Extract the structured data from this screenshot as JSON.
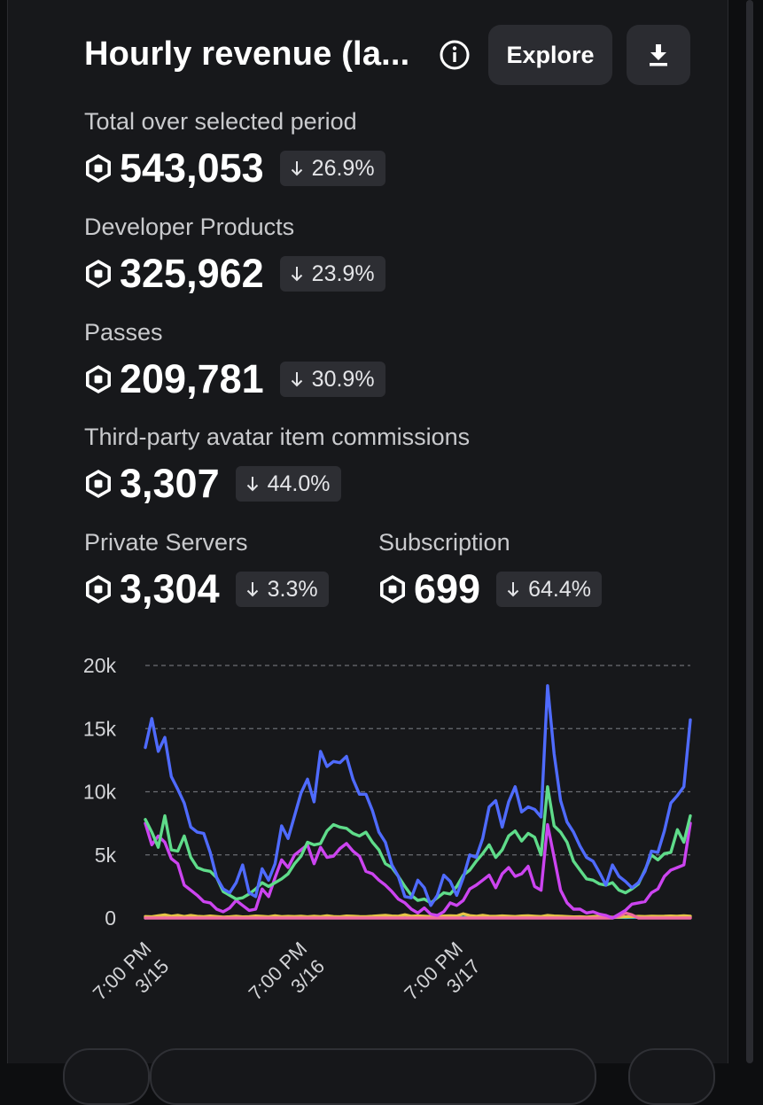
{
  "card": {
    "title": "Hourly revenue (la...",
    "explore_label": "Explore"
  },
  "icons": {
    "info": "info-icon",
    "download": "download-icon",
    "currency": "robux-icon",
    "delta": "arrow-down-icon"
  },
  "metrics": [
    {
      "label": "Total over selected period",
      "value": "543,053",
      "delta": "26.9%",
      "direction": "down"
    },
    {
      "label": "Developer Products",
      "value": "325,962",
      "delta": "23.9%",
      "direction": "down"
    },
    {
      "label": "Passes",
      "value": "209,781",
      "delta": "30.9%",
      "direction": "down"
    },
    {
      "label": "Third-party avatar item commissions",
      "value": "3,307",
      "delta": "44.0%",
      "direction": "down"
    },
    {
      "label": "Private Servers",
      "value": "3,304",
      "delta": "3.3%",
      "direction": "down"
    },
    {
      "label": "Subscription",
      "value": "699",
      "delta": "64.4%",
      "direction": "down"
    }
  ],
  "colors": {
    "background": "#17181b",
    "chip": "#2d2e33",
    "total": "#4f6bff",
    "developer_products": "#5fdc8a",
    "passes": "#cc44f0",
    "third_party": "#2bb3c5",
    "private_servers": "#e5c547",
    "subscription": "#f06aa0"
  },
  "chart_data": {
    "type": "line",
    "title": "",
    "xlabel": "",
    "ylabel": "",
    "ylim": [
      0,
      20000
    ],
    "y_ticks": [
      "20k",
      "15k",
      "10k",
      "5k",
      "0"
    ],
    "y_tick_values": [
      20000,
      15000,
      10000,
      5000,
      0
    ],
    "x_range": [
      0,
      84
    ],
    "x_ticks": [
      {
        "label": [
          "7:00 PM",
          "3/15"
        ],
        "x": 0
      },
      {
        "label": [
          "7:00 PM",
          "3/16"
        ],
        "x": 24
      },
      {
        "label": [
          "7:00 PM",
          "3/17"
        ],
        "x": 48
      }
    ],
    "grid": true,
    "legend": "none",
    "x": [
      0,
      1,
      2,
      3,
      4,
      5,
      6,
      7,
      8,
      9,
      10,
      11,
      12,
      13,
      14,
      15,
      16,
      17,
      18,
      19,
      20,
      21,
      22,
      23,
      24,
      25,
      26,
      27,
      28,
      29,
      30,
      31,
      32,
      33,
      34,
      35,
      36,
      37,
      38,
      39,
      40,
      41,
      42,
      43,
      44,
      45,
      46,
      47,
      48,
      49,
      50,
      51,
      52,
      53,
      54,
      55,
      56,
      57,
      58,
      59,
      60,
      61,
      62,
      63,
      64,
      65,
      66,
      67,
      68,
      69,
      70,
      71,
      72,
      73,
      74,
      75,
      76,
      77,
      78,
      79,
      80,
      81,
      82,
      83,
      84
    ],
    "series": [
      {
        "color_key": "total",
        "values": [
          13500,
          15800,
          13200,
          14300,
          11200,
          10200,
          9100,
          7200,
          6800,
          6700,
          5200,
          3200,
          2300,
          2000,
          2800,
          4200,
          2000,
          1700,
          3900,
          3000,
          4300,
          7300,
          6300,
          8100,
          9900,
          11000,
          9200,
          13200,
          12000,
          12400,
          12300,
          12800,
          11000,
          9800,
          9800,
          8500,
          6800,
          6000,
          4200,
          3300,
          1700,
          1600,
          3000,
          2400,
          1000,
          1800,
          3400,
          2900,
          1800,
          3200,
          5000,
          4800,
          6300,
          8800,
          9300,
          7200,
          9200,
          10400,
          8400,
          8800,
          8600,
          8000,
          18400,
          13000,
          9300,
          7600,
          6800,
          5700,
          4800,
          4500,
          3600,
          2600,
          4200,
          3300,
          2900,
          2400,
          2800,
          3700,
          5300,
          5200,
          6900,
          9100,
          9700,
          10400,
          15700
        ]
      },
      {
        "color_key": "developer_products",
        "values": [
          7800,
          6800,
          5600,
          8100,
          5400,
          5300,
          6500,
          4800,
          4000,
          3800,
          3700,
          3200,
          2100,
          1800,
          1500,
          1600,
          1900,
          2300,
          2800,
          2500,
          2800,
          3100,
          3500,
          4300,
          4900,
          6000,
          5800,
          5900,
          6900,
          7400,
          7200,
          7100,
          6700,
          6500,
          6800,
          6000,
          5400,
          4300,
          4000,
          3300,
          2500,
          1800,
          1400,
          1500,
          1200,
          1600,
          2000,
          1900,
          2500,
          3400,
          3800,
          4500,
          5100,
          5800,
          4800,
          5400,
          6500,
          6900,
          6100,
          6700,
          6400,
          5000,
          10400,
          7300,
          6800,
          6000,
          4500,
          3800,
          3100,
          3000,
          2700,
          2600,
          2800,
          2200,
          2000,
          2300,
          2700,
          3800,
          5000,
          4600,
          5100,
          5200,
          7000,
          6000,
          8100
        ]
      },
      {
        "color_key": "passes",
        "values": [
          7500,
          5800,
          6500,
          6000,
          4700,
          4300,
          2600,
          2200,
          1800,
          1300,
          1200,
          700,
          500,
          800,
          1400,
          1000,
          600,
          700,
          2300,
          1700,
          3200,
          4600,
          4000,
          5000,
          5400,
          5800,
          4300,
          5600,
          4800,
          4900,
          5500,
          5900,
          5300,
          4900,
          3700,
          3500,
          3000,
          2600,
          2100,
          1500,
          1200,
          700,
          400,
          800,
          300,
          200,
          500,
          1200,
          1000,
          1400,
          2300,
          2600,
          3000,
          3400,
          2400,
          3500,
          4000,
          3300,
          3500,
          4100,
          2500,
          2200,
          7400,
          4800,
          2200,
          1200,
          700,
          700,
          400,
          500,
          300,
          200,
          0,
          300,
          600,
          1100,
          1200,
          1300,
          2000,
          2300,
          3300,
          3800,
          4000,
          4200,
          7500
        ]
      },
      {
        "color_key": "third_party",
        "values": [
          0,
          60,
          70,
          60,
          50,
          80,
          40,
          60,
          40,
          40,
          50,
          30,
          40,
          60,
          50,
          40,
          30,
          50,
          60,
          40,
          60,
          50,
          60,
          40,
          50,
          60,
          40,
          60,
          50,
          40,
          60,
          50,
          40,
          60,
          50,
          40,
          60,
          50,
          40,
          60,
          40,
          50,
          30,
          50,
          40,
          30,
          60,
          50,
          40,
          60,
          30,
          50,
          40,
          60,
          50,
          40,
          80,
          60,
          40,
          60,
          50,
          40,
          60,
          50,
          40,
          60,
          50,
          40,
          60,
          40,
          50,
          30,
          40,
          60,
          40,
          60,
          50,
          40,
          60,
          50,
          40,
          60,
          50,
          40,
          60
        ]
      },
      {
        "color_key": "private_servers",
        "values": [
          120,
          100,
          180,
          250,
          150,
          220,
          120,
          200,
          130,
          110,
          160,
          120,
          80,
          100,
          140,
          90,
          110,
          160,
          130,
          100,
          180,
          110,
          130,
          120,
          150,
          100,
          140,
          110,
          180,
          120,
          100,
          160,
          140,
          120,
          110,
          140,
          180,
          220,
          160,
          150,
          260,
          140,
          170,
          150,
          120,
          110,
          160,
          180,
          160,
          340,
          190,
          140,
          220,
          150,
          130,
          170,
          150,
          120,
          160,
          180,
          150,
          120,
          200,
          160,
          150,
          120,
          90,
          100,
          70,
          120,
          140,
          100,
          60,
          80,
          100,
          110,
          130,
          120,
          150,
          130,
          140,
          160,
          140,
          180,
          150
        ]
      },
      {
        "color_key": "subscription",
        "values": [
          0,
          0,
          0,
          0,
          0,
          0,
          0,
          0,
          0,
          0,
          0,
          0,
          0,
          0,
          0,
          0,
          0,
          0,
          0,
          0,
          0,
          0,
          0,
          0,
          0,
          0,
          0,
          0,
          0,
          0,
          0,
          0,
          0,
          0,
          0,
          0,
          0,
          0,
          0,
          0,
          0,
          0,
          0,
          0,
          0,
          0,
          0,
          0,
          0,
          0,
          0,
          0,
          0,
          0,
          0,
          0,
          0,
          0,
          0,
          0,
          0,
          0,
          0,
          0,
          0,
          0,
          0,
          0,
          0,
          0,
          0,
          0,
          0,
          150,
          400,
          250,
          0,
          0,
          0,
          0,
          0,
          0,
          0,
          0,
          0
        ]
      }
    ]
  }
}
